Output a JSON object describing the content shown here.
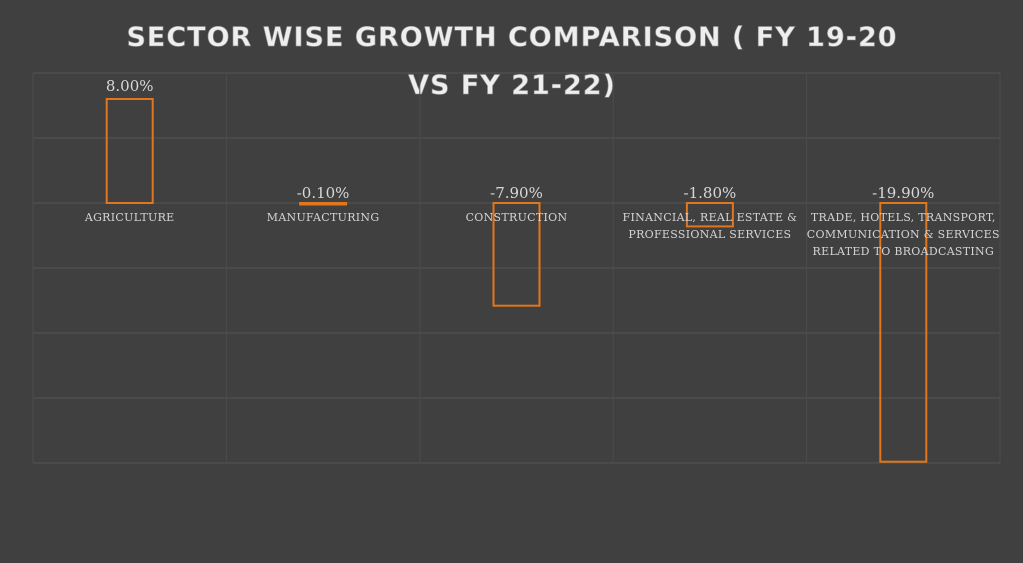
{
  "chart_data": {
    "type": "bar",
    "title_lines": [
      "SECTOR WISE GROWTH COMPARISON ( FY 19-20",
      "VS FY 21-22)"
    ],
    "categories": [
      [
        "AGRICULTURE"
      ],
      [
        "MANUFACTURING"
      ],
      [
        "CONSTRUCTION"
      ],
      [
        "FINANCIAL, REAL ESTATE &",
        "PROFESSIONAL SERVICES"
      ],
      [
        "TRADE, HOTELS, TRANSPORT,",
        "COMMUNICATION & SERVICES",
        "RELATED TO BROADCASTING"
      ]
    ],
    "values": [
      8.0,
      -0.1,
      -7.9,
      -1.8,
      -19.9
    ],
    "data_labels": [
      "8.00%",
      "-0.10%",
      "-7.90%",
      "-1.80%",
      "-19.90%"
    ],
    "ylim": [
      -20,
      10
    ],
    "grid": true,
    "bar_color": "#e2761c",
    "background": "#404040"
  }
}
